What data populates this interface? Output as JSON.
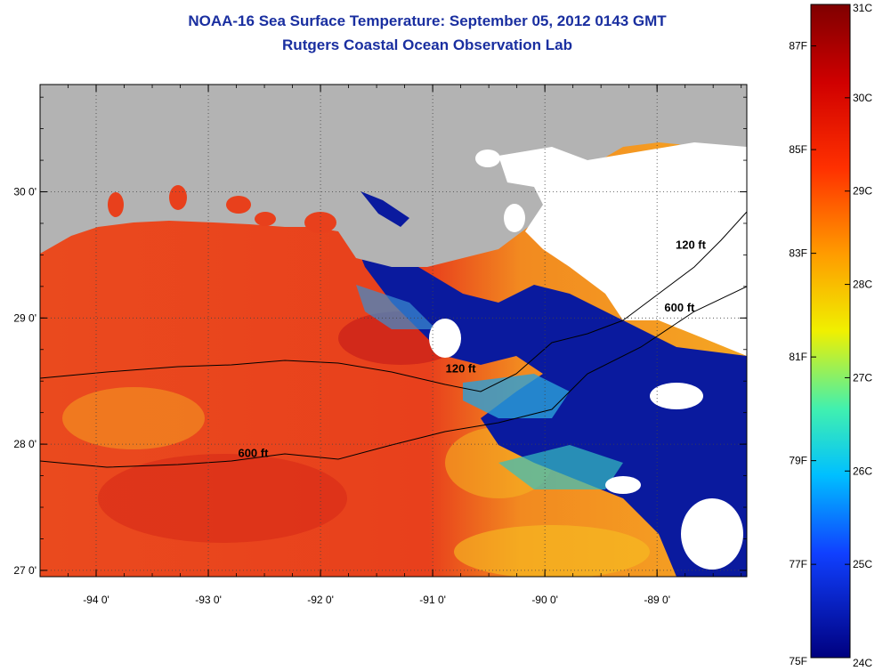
{
  "titles": {
    "line1": "NOAA-16 Sea Surface Temperature:  September 05, 2012 0143 GMT",
    "line2": "Rutgers Coastal Ocean Observation Lab"
  },
  "map": {
    "lon_range": [
      -94.5,
      -88.2
    ],
    "lat_range": [
      26.95,
      30.85
    ],
    "lon_ticks": [
      {
        "value": -94,
        "label": "-94 0'"
      },
      {
        "value": -93,
        "label": "-93 0'"
      },
      {
        "value": -92,
        "label": "-92 0'"
      },
      {
        "value": -91,
        "label": "-91 0'"
      },
      {
        "value": -90,
        "label": "-90 0'"
      },
      {
        "value": -89,
        "label": "-89 0'"
      }
    ],
    "lat_ticks": [
      {
        "value": 30,
        "label": "30 0'"
      },
      {
        "value": 29,
        "label": "29 0'"
      },
      {
        "value": 28,
        "label": "28 0'"
      },
      {
        "value": 27,
        "label": "27 0'"
      }
    ],
    "contour_labels": [
      {
        "text": "120 ft",
        "lon": -90.75,
        "lat": 28.57
      },
      {
        "text": "600 ft",
        "lon": -92.6,
        "lat": 27.9
      },
      {
        "text": "120 ft",
        "lon": -88.7,
        "lat": 29.55
      },
      {
        "text": "600 ft",
        "lon": -88.8,
        "lat": 29.05
      }
    ],
    "colors": {
      "land": "#b3b3b3",
      "cloud": "#ffffff",
      "warm_sea": "#e8401c",
      "cool_sea": "#0a1a9e",
      "grid": "#555555"
    }
  },
  "colorbar": {
    "min_c": 24,
    "max_c": 31,
    "celsius_labels": [
      "31C",
      "30C",
      "29C",
      "28C",
      "27C",
      "26C",
      "25C",
      "24C"
    ],
    "fahrenheit_labels": [
      "87F",
      "85F",
      "83F",
      "81F",
      "79F",
      "77F",
      "75F"
    ]
  }
}
